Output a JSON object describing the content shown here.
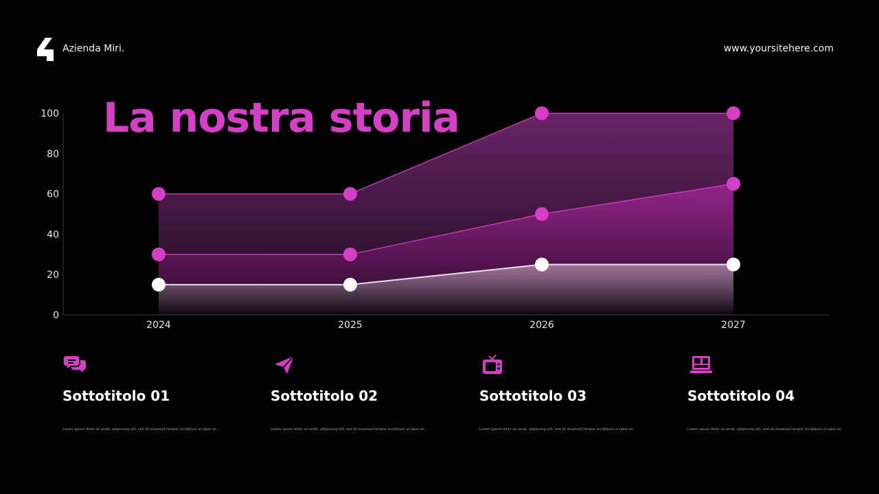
{
  "header": {
    "brand": "Azienda Miri.",
    "website": "www.yoursitehere.com"
  },
  "colors": {
    "accent": "#d63ec6",
    "background": "#030203"
  },
  "chart_data": {
    "type": "area",
    "title": "La nostra storia",
    "xlabel": "",
    "ylabel": "",
    "categories": [
      "2024",
      "2025",
      "2026",
      "2027"
    ],
    "y_ticks": [
      "0",
      "20",
      "40",
      "60",
      "80",
      "100"
    ],
    "ylim": [
      0,
      100
    ],
    "grid": false,
    "legend": "none",
    "series": [
      {
        "values": [
          60,
          60,
          100,
          100
        ],
        "color": "#d63ec6"
      },
      {
        "values": [
          30,
          30,
          50,
          65
        ],
        "color": "#d63ec6"
      },
      {
        "values": [
          15,
          15,
          25,
          25
        ],
        "color": "#ffffff"
      }
    ]
  },
  "features": [
    {
      "icon": "chat-bubbles-icon",
      "title": "Sottotitolo 01",
      "body": "Lorem ipsum dolor sit amet, adipiscing elit, sed do eiusmod tempor incididunt ut labor et."
    },
    {
      "icon": "paper-plane-icon",
      "title": "Sottotitolo 02",
      "body": "Lorem ipsum dolor sit amet, adipiscing elit, sed do eiusmod tempor incididunt ut labor et."
    },
    {
      "icon": "tv-icon",
      "title": "Sottotitolo 03",
      "body": "Lorem ipsum dolor sit amet, adipiscing elit, sed do eiusmod tempor incididunt ut labor et."
    },
    {
      "icon": "video-call-icon",
      "title": "Sottotitolo 04",
      "body": "Lorem ipsum dolor sit amet, adipiscing elit, sed do eiusmod tempor incididunt ut labor et."
    }
  ]
}
